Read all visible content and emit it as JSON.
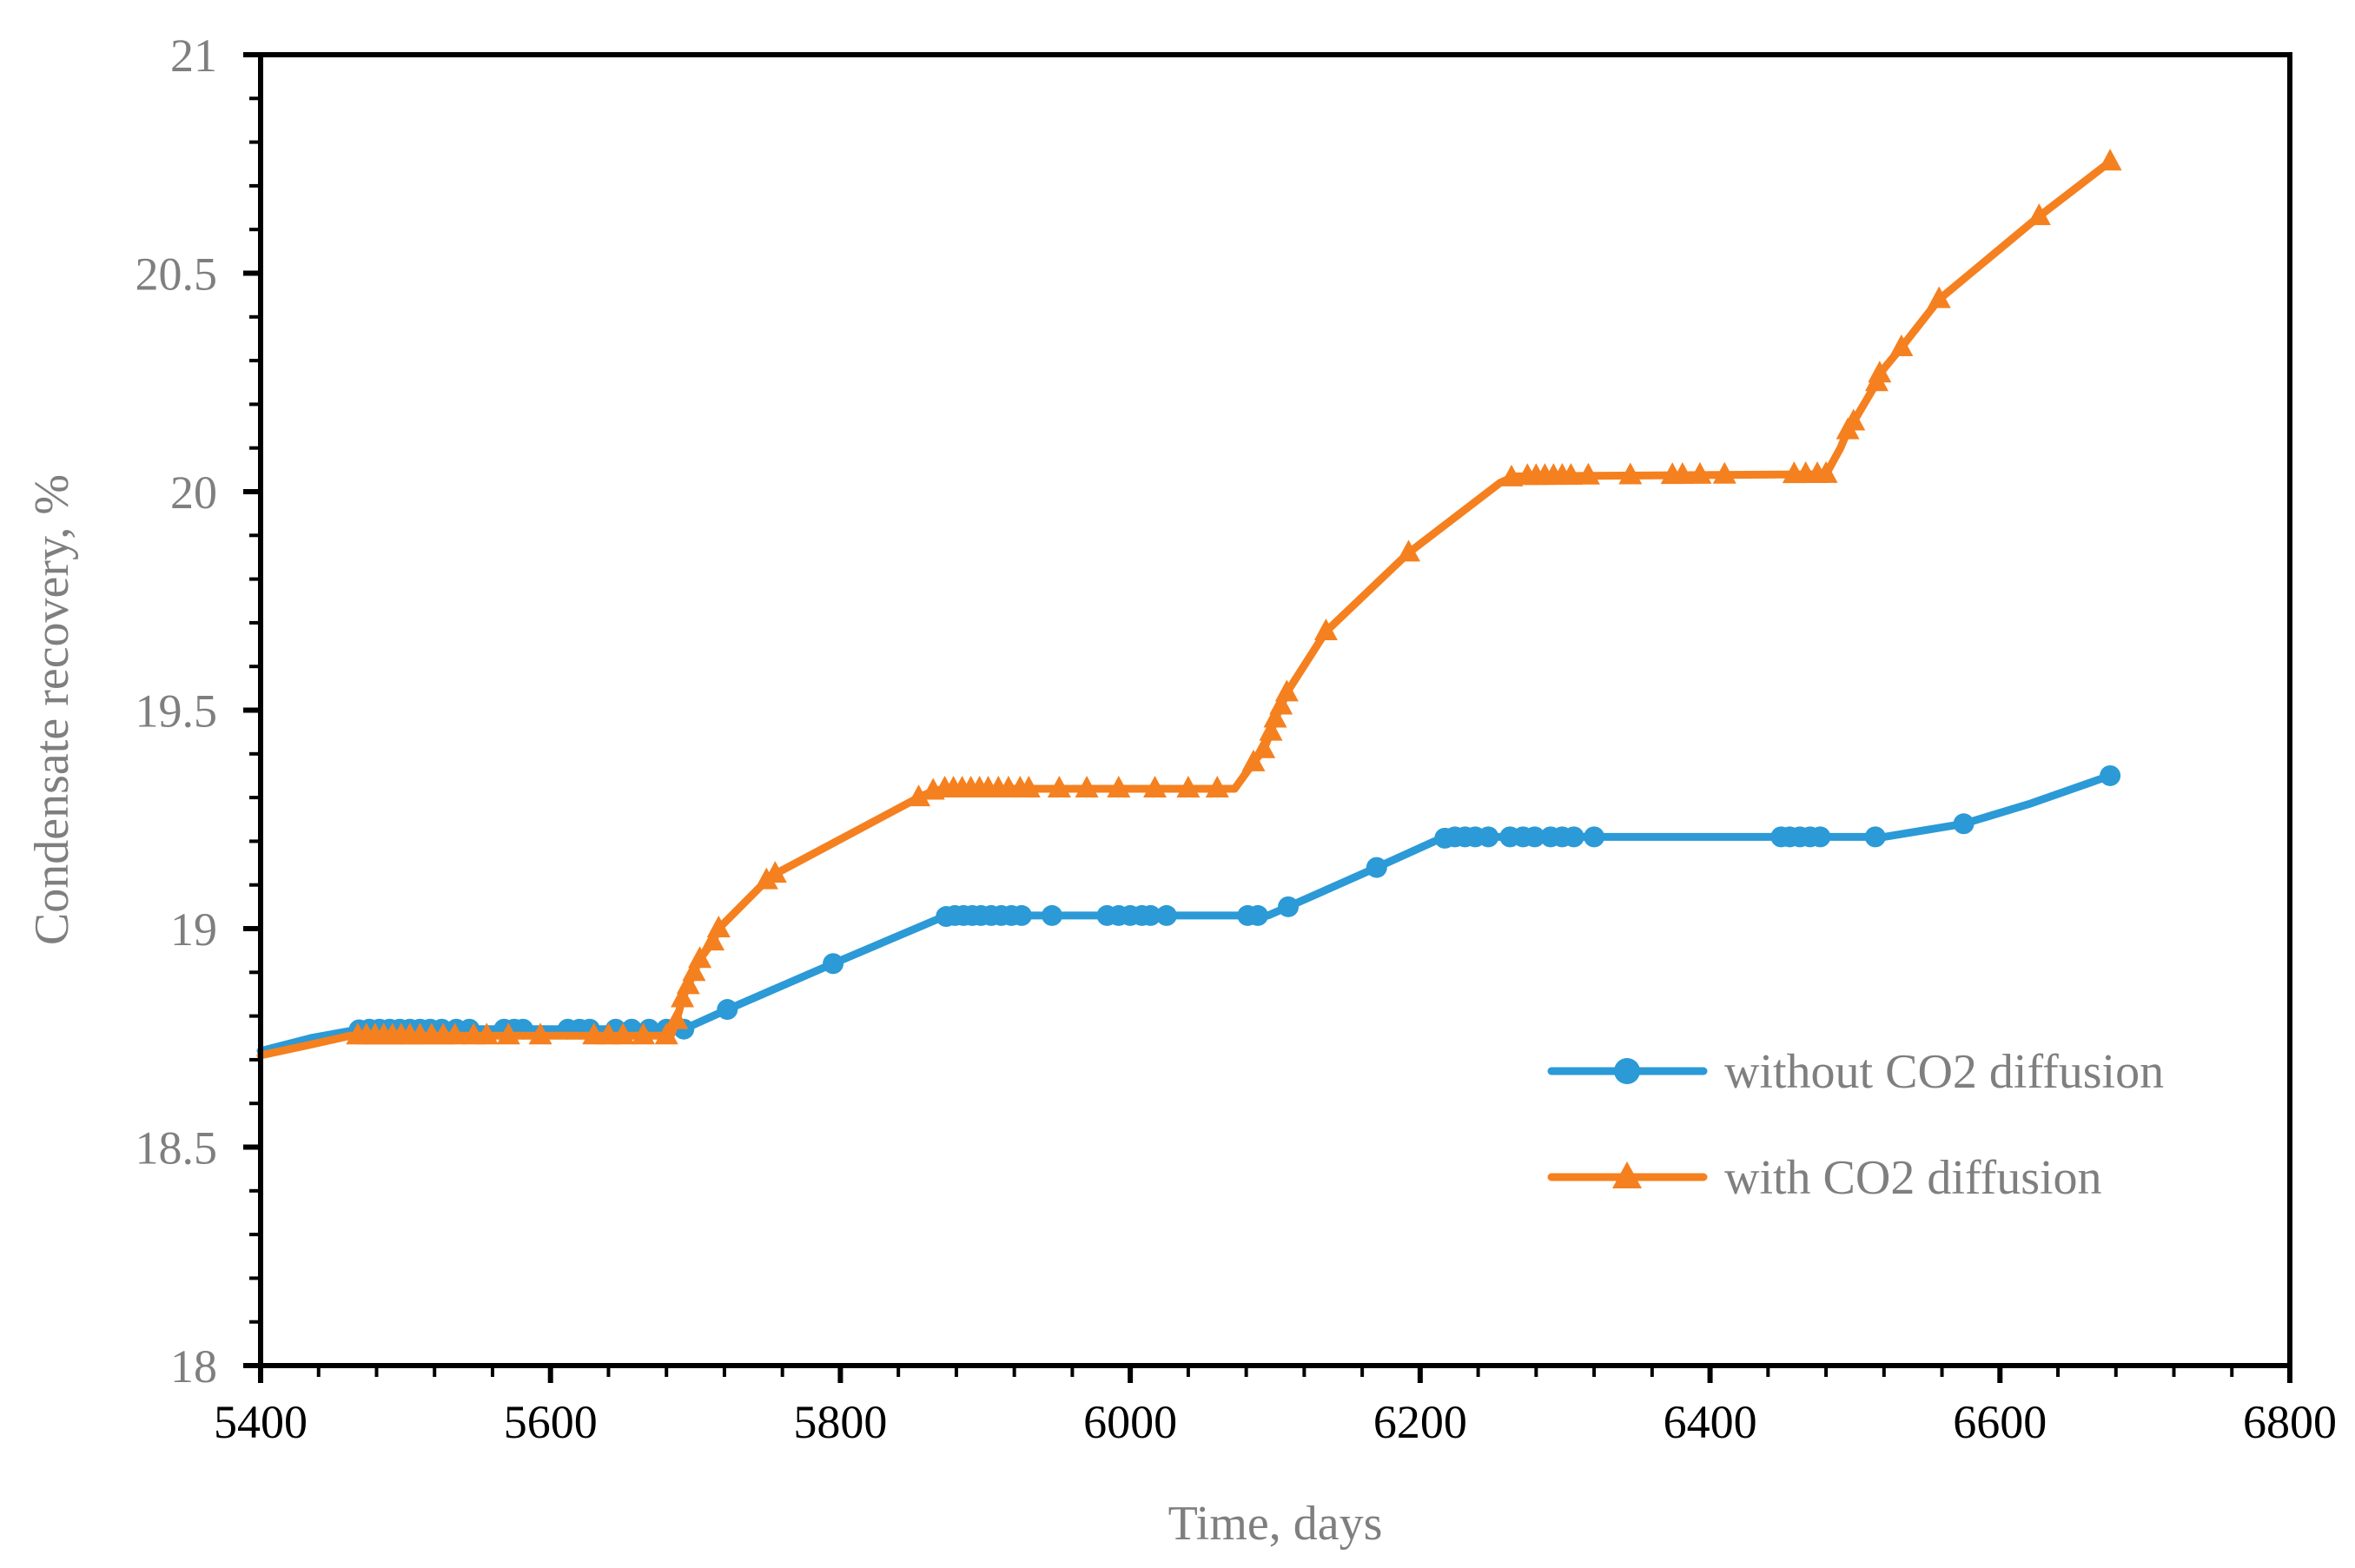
{
  "chart_data": {
    "type": "line",
    "title": "",
    "xlabel": "Time, days",
    "ylabel": "Condensate recovery, %",
    "xlim": [
      5400,
      6800
    ],
    "ylim": [
      18,
      21
    ],
    "x_ticks": [
      5400,
      5600,
      5800,
      6000,
      6200,
      6400,
      6600,
      6800
    ],
    "y_ticks": [
      18,
      18.5,
      19,
      19.5,
      20,
      20.5,
      21
    ],
    "x_minor_step": 40,
    "y_minor_step": 0.1,
    "grid": false,
    "legend_position": "inside-lower-right",
    "colors": {
      "axis": "#000000",
      "x_tick_label": "#000000",
      "y_tick_label": "#7f7f7f",
      "axis_title": "#7f7f7f",
      "legend_text": "#7f7f7f",
      "background": "#ffffff"
    },
    "series": [
      {
        "name": "without CO2 diffusion",
        "color": "#2b9ad6",
        "marker": "circle",
        "points": [
          [
            5400,
            18.72
          ],
          [
            5435,
            18.75
          ],
          [
            5462,
            18.766
          ],
          [
            5472,
            18.77
          ],
          [
            5560,
            18.77
          ],
          [
            5692,
            18.77
          ],
          [
            5722,
            18.815
          ],
          [
            5795,
            18.92
          ],
          [
            5866,
            19.02
          ],
          [
            5875,
            19.03
          ],
          [
            6095,
            19.03
          ],
          [
            6109,
            19.05
          ],
          [
            6170,
            19.14
          ],
          [
            6210,
            19.2
          ],
          [
            6220,
            19.21
          ],
          [
            6520,
            19.21
          ],
          [
            6575,
            19.24
          ],
          [
            6620,
            19.285
          ],
          [
            6676,
            19.35
          ]
        ],
        "marker_ts": [
          5468,
          5475,
          5482,
          5489,
          5496,
          5503,
          5510,
          5517,
          5525,
          5535,
          5544,
          5568,
          5575,
          5581,
          5612,
          5620,
          5627,
          5645,
          5656,
          5668,
          5680,
          5692,
          5722,
          5795,
          5873,
          5879,
          5885,
          5891,
          5897,
          5904,
          5911,
          5918,
          5925,
          5946,
          5984,
          5992,
          6000,
          6008,
          6014,
          6025,
          6081,
          6088,
          6109,
          6170,
          6217,
          6224,
          6231,
          6238,
          6247,
          6262,
          6271,
          6279,
          6290,
          6298,
          6306,
          6320,
          6449,
          6455,
          6462,
          6469,
          6476,
          6514,
          6575,
          6676
        ]
      },
      {
        "name": "with CO2 diffusion",
        "color": "#f5801f",
        "marker": "triangle",
        "points": [
          [
            5400,
            18.71
          ],
          [
            5435,
            18.735
          ],
          [
            5462,
            18.755
          ],
          [
            5683,
            18.755
          ],
          [
            5687,
            18.79
          ],
          [
            5691,
            18.84
          ],
          [
            5695,
            18.87
          ],
          [
            5699,
            18.9
          ],
          [
            5703,
            18.93
          ],
          [
            5712,
            18.97
          ],
          [
            5716,
            19.0
          ],
          [
            5749,
            19.11
          ],
          [
            5755,
            19.125
          ],
          [
            5854,
            19.3
          ],
          [
            5864,
            19.315
          ],
          [
            5872,
            19.32
          ],
          [
            6072,
            19.32
          ],
          [
            6085,
            19.38
          ],
          [
            6092,
            19.41
          ],
          [
            6097,
            19.45
          ],
          [
            6100,
            19.48
          ],
          [
            6104,
            19.51
          ],
          [
            6108,
            19.54
          ],
          [
            6135,
            19.68
          ],
          [
            6192,
            19.86
          ],
          [
            6255,
            20.02
          ],
          [
            6265,
            20.035
          ],
          [
            6480,
            20.04
          ],
          [
            6490,
            20.1
          ],
          [
            6495,
            20.14
          ],
          [
            6499,
            20.16
          ],
          [
            6515,
            20.25
          ],
          [
            6517,
            20.27
          ],
          [
            6532,
            20.33
          ],
          [
            6558,
            20.44
          ],
          [
            6627,
            20.63
          ],
          [
            6676,
            20.755
          ]
        ],
        "marker_ts": [
          5467,
          5473,
          5479,
          5485,
          5491,
          5497,
          5503,
          5510,
          5518,
          5526,
          5534,
          5547,
          5556,
          5571,
          5593,
          5630,
          5640,
          5650,
          5664,
          5680,
          5687,
          5691,
          5695,
          5699,
          5703,
          5712,
          5716,
          5749,
          5755,
          5854,
          5864,
          5872,
          5878,
          5884,
          5890,
          5896,
          5902,
          5909,
          5916,
          5924,
          5930,
          5951,
          5970,
          5992,
          6017,
          6040,
          6060,
          6085,
          6092,
          6097,
          6100,
          6104,
          6108,
          6135,
          6192,
          6263,
          6274,
          6280,
          6286,
          6292,
          6298,
          6304,
          6316,
          6345,
          6374,
          6381,
          6393,
          6410,
          6458,
          6466,
          6474,
          6480,
          6495,
          6499,
          6515,
          6517,
          6532,
          6558,
          6627,
          6676
        ]
      }
    ]
  }
}
